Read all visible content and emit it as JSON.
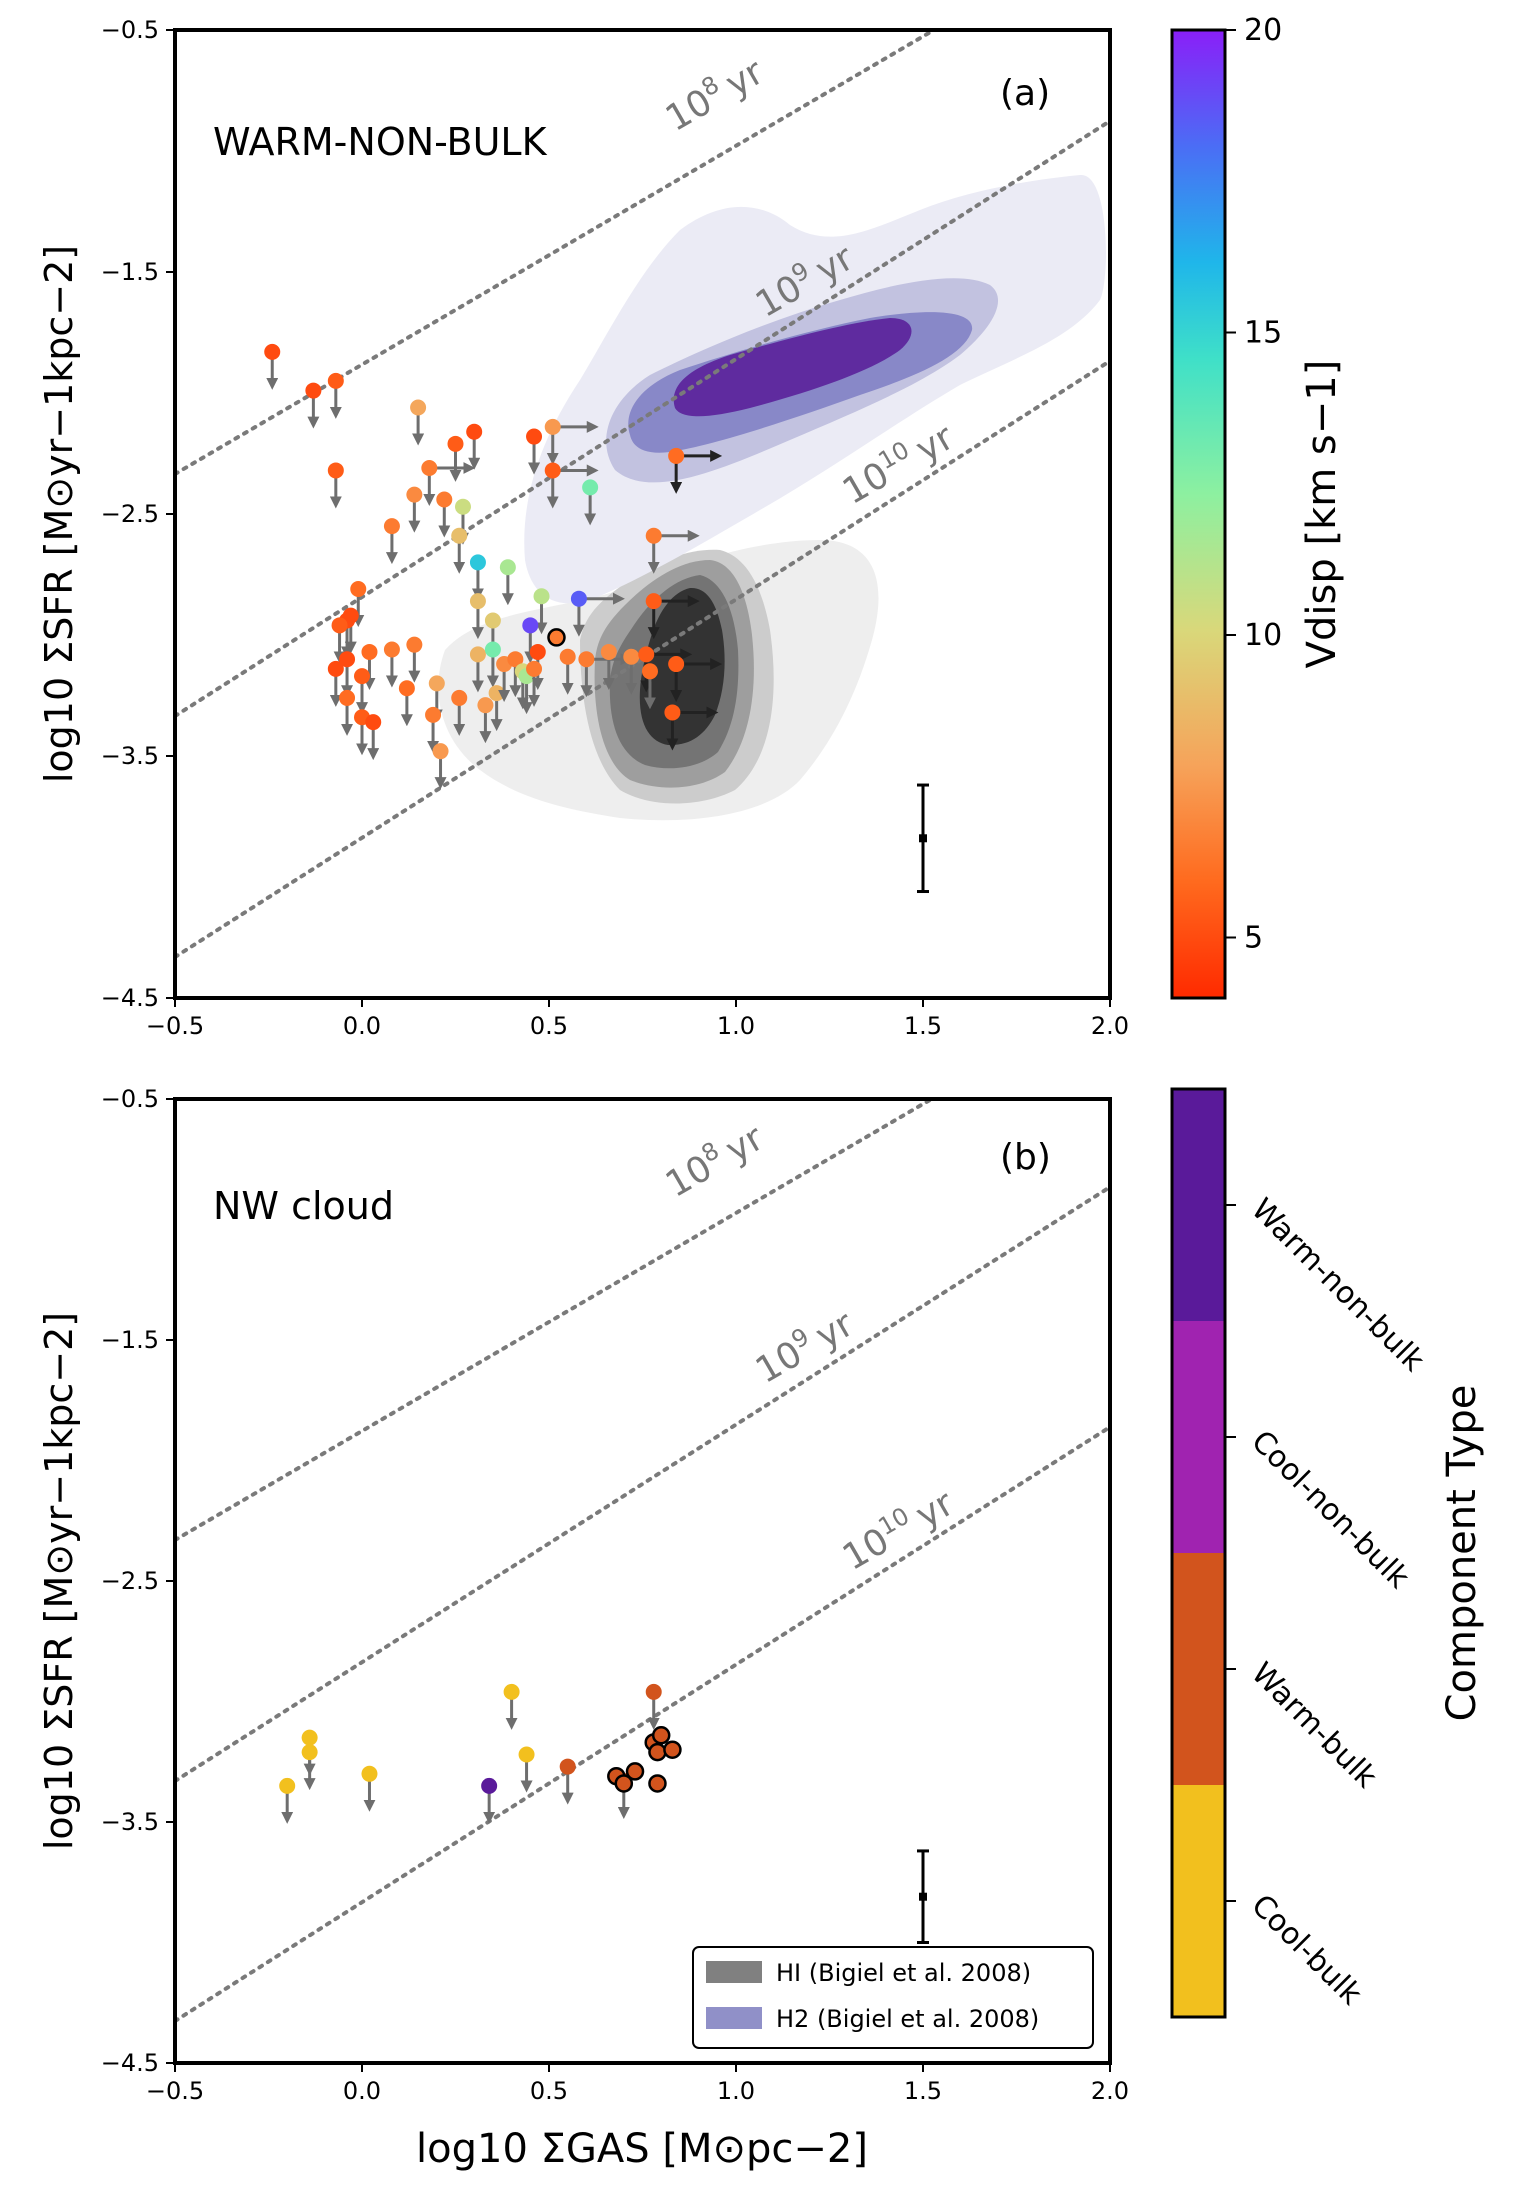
{
  "chart_data": [
    {
      "type": "scatter",
      "panel": "(a)",
      "title": "WARM-NON-BULK",
      "xlabel": "log10 ΣGAS [M⊙pc−2]",
      "ylabel": "log10 ΣSFR [M⊙yr−1kpc−2]",
      "xlim": [
        -0.5,
        2.0
      ],
      "ylim": [
        -4.5,
        -0.5
      ],
      "xticks": [
        -0.5,
        0.0,
        0.5,
        1.0,
        1.5,
        2.0
      ],
      "yticks": [
        -4.5,
        -3.5,
        -2.5,
        -1.5,
        -0.5
      ],
      "depletion_lines": [
        {
          "label_base": "10",
          "label_exp": "8",
          "label_unit": "yr",
          "log_tdep": 8
        },
        {
          "label_base": "10",
          "label_exp": "9",
          "label_unit": "yr",
          "log_tdep": 9
        },
        {
          "label_base": "10",
          "label_exp": "10",
          "label_unit": "yr",
          "log_tdep": 10
        }
      ],
      "error_bar": {
        "x": 1.5,
        "y": -3.84,
        "ylow": -4.06,
        "yhigh": -3.62
      },
      "colorbar": {
        "label": "Vdisp [km s−1]",
        "min": 4,
        "max": 20,
        "ticks": [
          5,
          10,
          15,
          20
        ]
      },
      "points": [
        {
          "x": -0.24,
          "y": -1.83,
          "v": 5.0,
          "up": 1
        },
        {
          "x": -0.13,
          "y": -1.99,
          "v": 5.0,
          "up": 1
        },
        {
          "x": -0.07,
          "y": -1.95,
          "v": 5.5,
          "up": 1
        },
        {
          "x": -0.07,
          "y": -2.32,
          "v": 5.5,
          "up": 1
        },
        {
          "x": 0.15,
          "y": -2.06,
          "v": 8.0,
          "up": 1
        },
        {
          "x": 0.18,
          "y": -2.31,
          "v": 6.5,
          "up": 1,
          "rt": 1
        },
        {
          "x": 0.25,
          "y": -2.21,
          "v": 5.5,
          "up": 1
        },
        {
          "x": 0.3,
          "y": -2.16,
          "v": 5.0,
          "up": 1
        },
        {
          "x": 0.14,
          "y": -2.42,
          "v": 7.0,
          "up": 1
        },
        {
          "x": 0.22,
          "y": -2.44,
          "v": 6.5,
          "up": 1
        },
        {
          "x": 0.27,
          "y": -2.47,
          "v": 10.5,
          "up": 1
        },
        {
          "x": 0.26,
          "y": -2.59,
          "v": 9.0,
          "up": 1
        },
        {
          "x": 0.08,
          "y": -2.55,
          "v": 6.5,
          "up": 1
        },
        {
          "x": 0.46,
          "y": -2.18,
          "v": 5.0,
          "up": 1
        },
        {
          "x": 0.51,
          "y": -2.14,
          "v": 7.5,
          "up": 1,
          "rt": 1
        },
        {
          "x": 0.51,
          "y": -2.32,
          "v": 5.5,
          "up": 1,
          "rt": 1
        },
        {
          "x": 0.61,
          "y": -2.39,
          "v": 13.0,
          "up": 1
        },
        {
          "x": 0.31,
          "y": -2.7,
          "v": 15.5,
          "up": 1
        },
        {
          "x": 0.39,
          "y": -2.72,
          "v": 11.5,
          "up": 1
        },
        {
          "x": 0.31,
          "y": -2.86,
          "v": 9.0,
          "up": 1
        },
        {
          "x": 0.48,
          "y": -2.84,
          "v": 11.0,
          "up": 1
        },
        {
          "x": 0.58,
          "y": -2.85,
          "v": 18.5,
          "up": 1,
          "rt": 1
        },
        {
          "x": 0.45,
          "y": -2.96,
          "v": 19.0,
          "up": 1
        },
        {
          "x": 0.35,
          "y": -2.94,
          "v": 9.5,
          "up": 1
        },
        {
          "x": 0.52,
          "y": -3.01,
          "v": 6.5,
          "edge": 1
        },
        {
          "x": -0.01,
          "y": -2.81,
          "v": 6.0,
          "up": 1
        },
        {
          "x": -0.03,
          "y": -2.92,
          "v": 5.0,
          "up": 1
        },
        {
          "x": -0.04,
          "y": -2.94,
          "v": 5.0,
          "up": 1
        },
        {
          "x": -0.06,
          "y": -2.96,
          "v": 5.5,
          "up": 1
        },
        {
          "x": -0.04,
          "y": -3.1,
          "v": 5.0,
          "up": 1
        },
        {
          "x": -0.07,
          "y": -3.14,
          "v": 5.0,
          "up": 1
        },
        {
          "x": 0.02,
          "y": -3.07,
          "v": 6.0,
          "up": 1
        },
        {
          "x": 0.08,
          "y": -3.06,
          "v": 6.5,
          "up": 1
        },
        {
          "x": 0.14,
          "y": -3.04,
          "v": 6.5,
          "up": 1
        },
        {
          "x": 0.0,
          "y": -3.17,
          "v": 5.5,
          "up": 1
        },
        {
          "x": -0.04,
          "y": -3.26,
          "v": 6.0,
          "up": 1
        },
        {
          "x": 0.0,
          "y": -3.34,
          "v": 5.5,
          "up": 1
        },
        {
          "x": 0.03,
          "y": -3.36,
          "v": 5.0,
          "up": 1
        },
        {
          "x": 0.12,
          "y": -3.22,
          "v": 6.0,
          "up": 1
        },
        {
          "x": 0.2,
          "y": -3.2,
          "v": 8.0,
          "up": 1
        },
        {
          "x": 0.19,
          "y": -3.33,
          "v": 6.5,
          "up": 1
        },
        {
          "x": 0.21,
          "y": -3.48,
          "v": 7.5,
          "up": 1
        },
        {
          "x": 0.26,
          "y": -3.26,
          "v": 6.5,
          "up": 1
        },
        {
          "x": 0.31,
          "y": -3.08,
          "v": 8.5,
          "up": 1
        },
        {
          "x": 0.35,
          "y": -3.06,
          "v": 13.0,
          "up": 1
        },
        {
          "x": 0.36,
          "y": -3.24,
          "v": 8.5,
          "up": 1
        },
        {
          "x": 0.33,
          "y": -3.29,
          "v": 7.5,
          "up": 1
        },
        {
          "x": 0.38,
          "y": -3.12,
          "v": 7.0,
          "up": 1
        },
        {
          "x": 0.41,
          "y": -3.1,
          "v": 6.5,
          "up": 1
        },
        {
          "x": 0.43,
          "y": -3.15,
          "v": 10.0,
          "up": 1
        },
        {
          "x": 0.44,
          "y": -3.17,
          "v": 11.5,
          "up": 1
        },
        {
          "x": 0.47,
          "y": -3.07,
          "v": 5.0,
          "up": 1
        },
        {
          "x": 0.46,
          "y": -3.14,
          "v": 6.5,
          "up": 1
        },
        {
          "x": 0.55,
          "y": -3.09,
          "v": 6.5,
          "up": 1
        },
        {
          "x": 0.6,
          "y": -3.1,
          "v": 6.5,
          "up": 1,
          "rt": 1
        },
        {
          "x": 0.66,
          "y": -3.07,
          "v": 7.0,
          "up": 1
        },
        {
          "x": 0.72,
          "y": -3.09,
          "v": 7.0,
          "up": 1
        },
        {
          "x": 0.84,
          "y": -2.26,
          "v": 6.0,
          "up": 1,
          "rt": 1,
          "dark": 1
        },
        {
          "x": 0.78,
          "y": -2.59,
          "v": 6.5,
          "up": 1,
          "rt": 1
        },
        {
          "x": 0.78,
          "y": -2.86,
          "v": 5.5,
          "up": 1,
          "rt": 1,
          "dark": 1
        },
        {
          "x": 0.76,
          "y": -3.08,
          "v": 5.5,
          "up": 1,
          "rt": 1,
          "dark": 1
        },
        {
          "x": 0.84,
          "y": -3.12,
          "v": 5.5,
          "up": 1,
          "rt": 1,
          "dark": 1
        },
        {
          "x": 0.83,
          "y": -3.32,
          "v": 5.5,
          "up": 1,
          "rt": 1,
          "dark": 1
        },
        {
          "x": 0.77,
          "y": -3.15,
          "v": 6.0,
          "up": 1
        }
      ]
    },
    {
      "type": "scatter",
      "panel": "(b)",
      "title": "NW cloud",
      "xlabel": "log10 ΣGAS [M⊙pc−2]",
      "ylabel": "log10 ΣSFR [M⊙yr−1kpc−2]",
      "xlim": [
        -0.5,
        2.0
      ],
      "ylim": [
        -4.5,
        -0.5
      ],
      "xticks": [
        -0.5,
        0.0,
        0.5,
        1.0,
        1.5,
        2.0
      ],
      "yticks": [
        -4.5,
        -3.5,
        -2.5,
        -1.5,
        -0.5
      ],
      "error_bar": {
        "x": 1.5,
        "y": -3.81,
        "ylow": -4.0,
        "yhigh": -3.62
      },
      "legend": {
        "location": "lower right",
        "entries": [
          {
            "label": "HI (Bigiel et al. 2008)",
            "color": "#808080"
          },
          {
            "label": "H2 (Bigiel et al. 2008)",
            "color": "#9090c8"
          }
        ]
      },
      "colorbar": {
        "label": "Component Type",
        "categories": [
          "Cool-bulk",
          "Warm-bulk",
          "Cool-non-bulk",
          "Warm-non-bulk"
        ],
        "colors": [
          "#f2c01e",
          "#d2541d",
          "#a023b0",
          "#5a1a9a"
        ]
      },
      "points": [
        {
          "x": -0.2,
          "y": -3.35,
          "type": "Cool-bulk",
          "up": 1
        },
        {
          "x": -0.14,
          "y": -3.15,
          "type": "Cool-bulk",
          "up": 1
        },
        {
          "x": -0.14,
          "y": -3.21,
          "type": "Cool-bulk",
          "up": 1
        },
        {
          "x": 0.02,
          "y": -3.3,
          "type": "Cool-bulk",
          "up": 1
        },
        {
          "x": 0.4,
          "y": -2.96,
          "type": "Cool-bulk",
          "up": 1
        },
        {
          "x": 0.44,
          "y": -3.22,
          "type": "Cool-bulk",
          "up": 1
        },
        {
          "x": 0.34,
          "y": -3.35,
          "type": "Warm-non-bulk",
          "up": 1
        },
        {
          "x": 0.55,
          "y": -3.27,
          "type": "Warm-bulk",
          "up": 1
        },
        {
          "x": 0.78,
          "y": -2.96,
          "type": "Warm-bulk",
          "up": 1
        },
        {
          "x": 0.7,
          "y": -3.33,
          "type": "Warm-bulk",
          "up": 1
        },
        {
          "x": 0.68,
          "y": -3.31,
          "type": "Warm-bulk",
          "edge": 1
        },
        {
          "x": 0.7,
          "y": -3.34,
          "type": "Warm-bulk",
          "edge": 1
        },
        {
          "x": 0.73,
          "y": -3.29,
          "type": "Warm-bulk",
          "edge": 1
        },
        {
          "x": 0.78,
          "y": -3.17,
          "type": "Warm-bulk",
          "edge": 1
        },
        {
          "x": 0.79,
          "y": -3.21,
          "type": "Warm-bulk",
          "edge": 1
        },
        {
          "x": 0.8,
          "y": -3.14,
          "type": "Warm-bulk",
          "edge": 1
        },
        {
          "x": 0.83,
          "y": -3.2,
          "type": "Warm-bulk",
          "edge": 1
        },
        {
          "x": 0.79,
          "y": -3.34,
          "type": "Warm-bulk",
          "edge": 1
        }
      ]
    }
  ]
}
